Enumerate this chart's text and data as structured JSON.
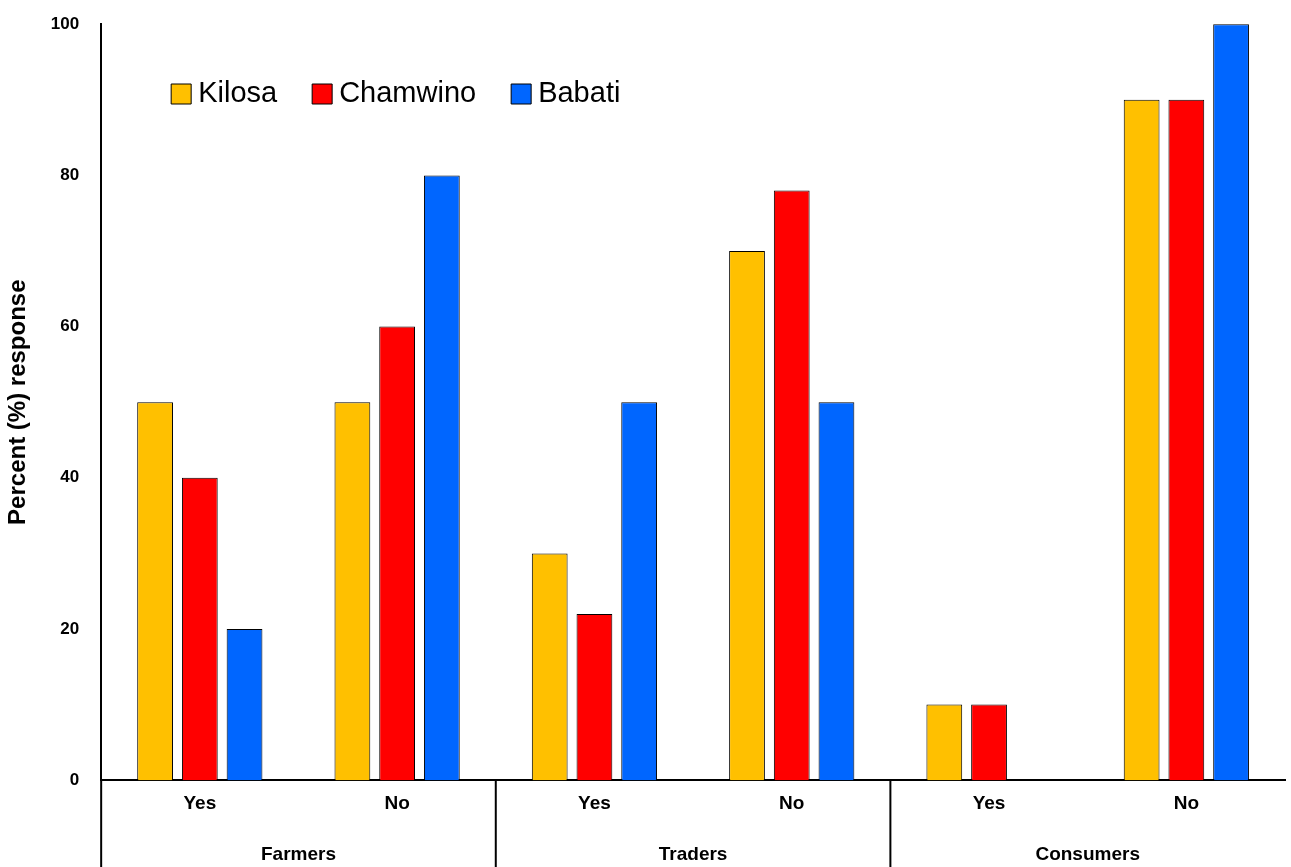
{
  "chart_data": {
    "type": "bar",
    "ylabel": "Percent (%) response",
    "categories": [
      "Yes",
      "No",
      "Yes",
      "No",
      "Yes",
      "No"
    ],
    "annotations": [
      "Farmers",
      "Traders",
      "Consumers"
    ],
    "series": [
      {
        "name": "Kilosa",
        "color": "#ffc000",
        "values": [
          50,
          50,
          30,
          70,
          10,
          90
        ]
      },
      {
        "name": "Chamwino",
        "color": "#ff0000",
        "values": [
          40,
          60,
          22,
          78,
          10,
          90
        ]
      },
      {
        "name": "Babati",
        "color": "#0066ff",
        "values": [
          20,
          80,
          50,
          50,
          0,
          100
        ]
      }
    ],
    "ylim": [
      0,
      100
    ],
    "yticks": [
      0,
      20,
      40,
      60,
      80,
      100
    ],
    "grid": false,
    "legend": "top left"
  }
}
